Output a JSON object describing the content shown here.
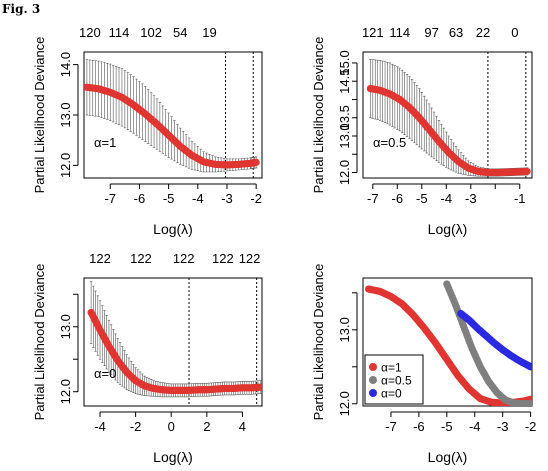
{
  "figure_label": "Fig. 3",
  "chart_data": [
    {
      "type": "line",
      "title": "",
      "xlabel": "Log(λ)",
      "ylabel": "Partial Likelihood Deviance",
      "xlim": [
        -7.9,
        -1.8
      ],
      "ylim": [
        11.75,
        14.25
      ],
      "x_ticks": [
        -7,
        -6,
        -5,
        -4,
        -3,
        -2
      ],
      "y_ticks": [
        12.0,
        13.0,
        14.0
      ],
      "top_ticks": {
        "x": [
          -7.7,
          -6.7,
          -5.6,
          -4.6,
          -3.6
        ],
        "labels": [
          "120",
          "114",
          "102",
          "54",
          "19"
        ]
      },
      "vlines": [
        -3.05,
        -2.1
      ],
      "annotation": "α=1",
      "error_bars": true,
      "series": [
        {
          "x": [
            -7.8,
            -7.4,
            -7.0,
            -6.6,
            -6.2,
            -5.8,
            -5.4,
            -5.0,
            -4.6,
            -4.2,
            -3.8,
            -3.4,
            -3.0,
            -2.6,
            -2.2,
            -2.0
          ],
          "y": [
            13.55,
            13.52,
            13.45,
            13.35,
            13.2,
            13.02,
            12.82,
            12.6,
            12.38,
            12.2,
            12.07,
            12.02,
            12.01,
            12.02,
            12.04,
            12.06
          ],
          "err": [
            0.55,
            0.55,
            0.56,
            0.57,
            0.56,
            0.55,
            0.5,
            0.44,
            0.36,
            0.28,
            0.2,
            0.15,
            0.12,
            0.11,
            0.11,
            0.11
          ]
        }
      ]
    },
    {
      "type": "line",
      "title": "",
      "xlabel": "Log(λ)",
      "ylabel": "Partial Likelihood Deviance",
      "xlim": [
        -7.4,
        -0.5
      ],
      "ylim": [
        11.85,
        15.3
      ],
      "x_ticks": [
        -7,
        -6,
        -5,
        -4,
        -3,
        -2,
        -1
      ],
      "x_tick_labels": [
        "-7",
        "-6",
        "-5",
        "-4",
        "-3",
        "",
        "-1"
      ],
      "y_ticks": [
        12.0,
        12.5,
        13.0,
        13.5,
        14.0,
        14.5,
        15.0
      ],
      "y_tick_labels": [
        "12.0",
        "",
        "13.0",
        "13.5",
        "",
        "14.5",
        "15.0"
      ],
      "top_ticks": {
        "x": [
          -7.0,
          -5.9,
          -4.6,
          -3.6,
          -2.5,
          -1.2
        ],
        "labels": [
          "121",
          "114",
          "97",
          "63",
          "22",
          "0"
        ]
      },
      "vlines": [
        -2.3,
        -0.75
      ],
      "annotation": "α=0.5",
      "error_bars": true,
      "series": [
        {
          "x": [
            -7.1,
            -6.7,
            -6.3,
            -5.9,
            -5.5,
            -5.1,
            -4.7,
            -4.3,
            -3.9,
            -3.5,
            -3.1,
            -2.7,
            -2.3,
            -1.9,
            -1.5,
            -1.1,
            -0.7
          ],
          "y": [
            14.3,
            14.25,
            14.15,
            14.0,
            13.78,
            13.5,
            13.18,
            12.85,
            12.55,
            12.3,
            12.12,
            12.03,
            12.0,
            12.0,
            12.01,
            12.02,
            12.03
          ],
          "err": [
            0.8,
            0.82,
            0.85,
            0.86,
            0.85,
            0.8,
            0.7,
            0.58,
            0.45,
            0.32,
            0.2,
            0.13,
            0.1,
            0.1,
            0.1,
            0.1,
            0.1
          ]
        }
      ]
    },
    {
      "type": "line",
      "title": "",
      "xlabel": "Log(λ)",
      "ylabel": "Partial Likelihood Deviance",
      "xlim": [
        -4.9,
        5.1
      ],
      "ylim": [
        11.78,
        13.75
      ],
      "x_ticks": [
        -4,
        -2,
        0,
        2,
        4
      ],
      "y_ticks": [
        12.0,
        12.5,
        13.0,
        13.5
      ],
      "y_tick_labels": [
        "12.0",
        "",
        "13.0",
        ""
      ],
      "top_ticks": {
        "x": [
          -4.0,
          -1.7,
          0.7,
          2.9,
          4.4
        ],
        "labels": [
          "122",
          "122",
          "122",
          "122",
          "122"
        ]
      },
      "vlines": [
        1.0,
        4.8
      ],
      "annotation": "α=0",
      "error_bars": true,
      "series": [
        {
          "x": [
            -4.5,
            -4.0,
            -3.5,
            -3.0,
            -2.5,
            -2.0,
            -1.5,
            -1.0,
            -0.5,
            0.0,
            0.5,
            1.0,
            1.5,
            2.0,
            2.5,
            3.0,
            3.5,
            4.0,
            4.5,
            5.0
          ],
          "y": [
            13.22,
            12.95,
            12.7,
            12.48,
            12.3,
            12.17,
            12.09,
            12.05,
            12.03,
            12.02,
            12.02,
            12.02,
            12.03,
            12.03,
            12.04,
            12.05,
            12.05,
            12.06,
            12.06,
            12.07
          ],
          "err": [
            0.48,
            0.45,
            0.4,
            0.34,
            0.27,
            0.2,
            0.15,
            0.12,
            0.11,
            0.1,
            0.1,
            0.1,
            0.1,
            0.1,
            0.1,
            0.1,
            0.1,
            0.1,
            0.1,
            0.1
          ]
        }
      ]
    },
    {
      "type": "line",
      "title": "",
      "xlabel": "Log(λ)",
      "ylabel": "Partial Likelihood Deviance",
      "xlim": [
        -8.0,
        -1.95
      ],
      "ylim": [
        11.97,
        13.7
      ],
      "x_ticks": [
        -7,
        -6,
        -5,
        -4,
        -3,
        -2
      ],
      "y_ticks": [
        12.0,
        12.5,
        13.0,
        13.5
      ],
      "y_tick_labels": [
        "12.0",
        "",
        "13.0",
        ""
      ],
      "legend": {
        "placement": "bottom-left"
      },
      "series": [
        {
          "name": "α=1",
          "color": "#e03530",
          "x": [
            -7.8,
            -7.4,
            -7.0,
            -6.6,
            -6.2,
            -5.8,
            -5.4,
            -5.0,
            -4.6,
            -4.2,
            -3.8,
            -3.4,
            -3.0,
            -2.6,
            -2.2,
            -2.0
          ],
          "y": [
            13.55,
            13.52,
            13.45,
            13.35,
            13.2,
            13.02,
            12.82,
            12.6,
            12.38,
            12.2,
            12.07,
            12.02,
            12.01,
            12.02,
            12.04,
            12.06
          ]
        },
        {
          "name": "α=0.5",
          "color": "#7f7f7f",
          "x": [
            -5.0,
            -4.7,
            -4.4,
            -4.1,
            -3.8,
            -3.5,
            -3.2,
            -2.9,
            -2.6,
            -2.3,
            -2.0
          ],
          "y": [
            13.62,
            13.35,
            13.05,
            12.75,
            12.5,
            12.3,
            12.15,
            12.05,
            12.01,
            12.0,
            12.0
          ]
        },
        {
          "name": "α=0",
          "color": "#2a2ae0",
          "x": [
            -4.5,
            -4.2,
            -3.9,
            -3.6,
            -3.3,
            -3.0,
            -2.7,
            -2.4,
            -2.1,
            -2.0
          ],
          "y": [
            13.22,
            13.13,
            13.02,
            12.92,
            12.82,
            12.73,
            12.65,
            12.58,
            12.52,
            12.5
          ]
        }
      ]
    }
  ]
}
